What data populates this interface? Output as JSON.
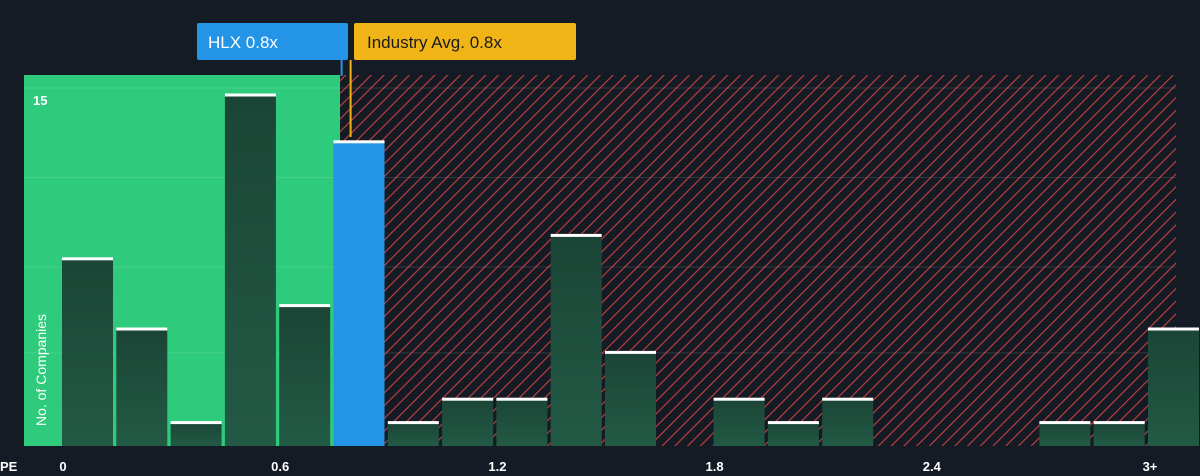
{
  "callouts": {
    "company_label": "HLX 0.8x",
    "company_color": "#2394e6",
    "industry_label": "Industry Avg. 0.8x",
    "industry_color": "#f0b417"
  },
  "colors": {
    "background": "#151b24",
    "fair_zone": "#2ecb7c",
    "over_zone_stripe": "#c84040",
    "bar_dark": "#1d4a3a",
    "highlight_bar": "#2394e6",
    "bar_cap": "#ffffff"
  },
  "chart_data": {
    "type": "bar",
    "title": "",
    "xlabel": "PE",
    "ylabel": "No. of Companies",
    "x_ticks": [
      "0",
      "0.6",
      "1.2",
      "1.8",
      "2.4",
      "3+"
    ],
    "x_tick_values": [
      0,
      0.6,
      1.2,
      1.8,
      2.4,
      3.0
    ],
    "xlim": [
      -0.1,
      3.1
    ],
    "ylim": [
      0,
      15.5
    ],
    "y_ticks_labeled": [
      15
    ],
    "grid": true,
    "highlight_value": 0.8,
    "industry_avg": 0.8,
    "bins": [
      {
        "x": 0.0,
        "value": 8,
        "highlight": false
      },
      {
        "x": 0.15,
        "value": 5,
        "highlight": false
      },
      {
        "x": 0.3,
        "value": 1,
        "highlight": false
      },
      {
        "x": 0.45,
        "value": 15,
        "highlight": false
      },
      {
        "x": 0.6,
        "value": 6,
        "highlight": false
      },
      {
        "x": 0.75,
        "value": 13,
        "highlight": true
      },
      {
        "x": 0.9,
        "value": 1,
        "highlight": false
      },
      {
        "x": 1.05,
        "value": 2,
        "highlight": false
      },
      {
        "x": 1.2,
        "value": 2,
        "highlight": false
      },
      {
        "x": 1.35,
        "value": 9,
        "highlight": false
      },
      {
        "x": 1.5,
        "value": 4,
        "highlight": false
      },
      {
        "x": 1.65,
        "value": 0,
        "highlight": false
      },
      {
        "x": 1.8,
        "value": 2,
        "highlight": false
      },
      {
        "x": 1.95,
        "value": 1,
        "highlight": false
      },
      {
        "x": 2.1,
        "value": 2,
        "highlight": false
      },
      {
        "x": 2.25,
        "value": 0,
        "highlight": false
      },
      {
        "x": 2.4,
        "value": 0,
        "highlight": false
      },
      {
        "x": 2.55,
        "value": 0,
        "highlight": false
      },
      {
        "x": 2.7,
        "value": 1,
        "highlight": false
      },
      {
        "x": 2.85,
        "value": 1,
        "highlight": false
      },
      {
        "x": 3.0,
        "value": 5,
        "highlight": false
      }
    ]
  }
}
